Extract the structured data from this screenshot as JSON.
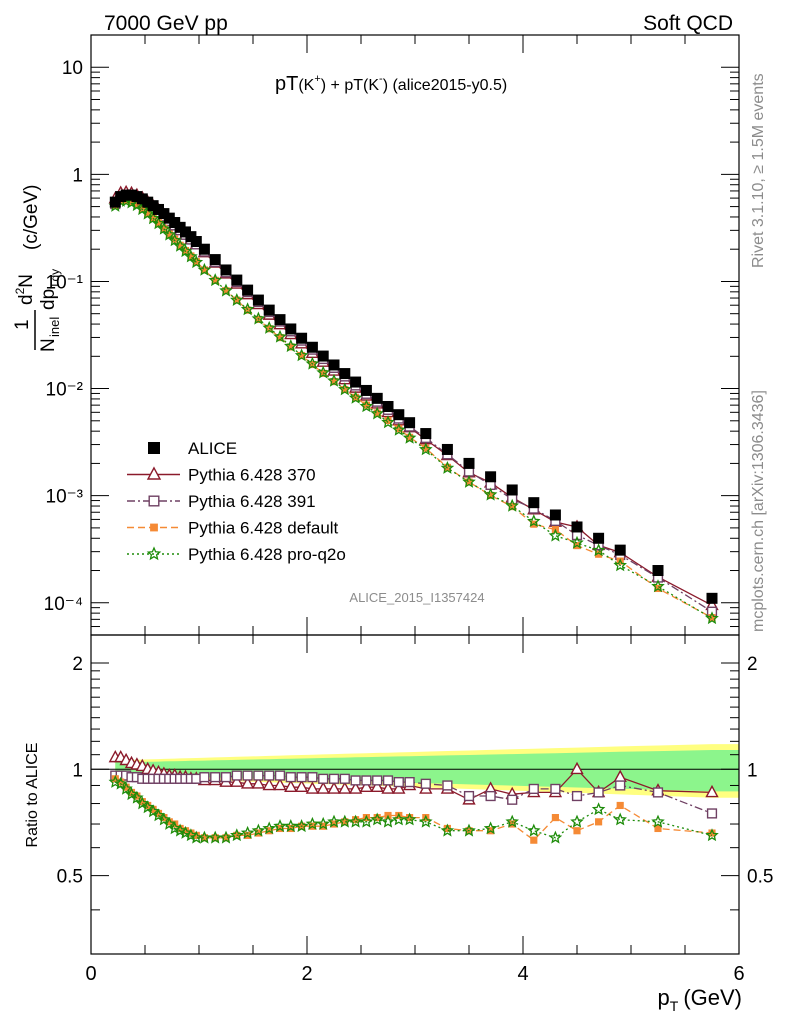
{
  "header": {
    "left": "7000 GeV pp",
    "right": "Soft QCD"
  },
  "side_text": {
    "rivet": "Rivet 3.1.10, ≥ 1.5M events",
    "mcplots": "mcplots.cern.ch [arXiv:1306.3436]"
  },
  "chart_data": {
    "type": "scatter",
    "title_main": "pT",
    "title_k_plus": "(K",
    "title_plus_sup": "+",
    "title_mid": ") + pT(K",
    "title_minus_sup": "-",
    "title_tail": ") (alice2015-y0.5)",
    "watermark": "ALICE_2015_I1357424",
    "ylabel_main": "(c/GeV)",
    "xlabel": "p",
    "xlabel_sub": "T",
    "xlabel_unit": "(GeV)",
    "ratio_ylabel": "Ratio to ALICE",
    "xlim": [
      0,
      6
    ],
    "ylim": [
      5e-05,
      20
    ],
    "yscale": "log",
    "ratio_ylim": [
      0.3,
      2.4
    ],
    "x_ticks": [
      "0",
      "2",
      "4",
      "6"
    ],
    "y_ticks": [
      "10",
      "1",
      "10⁻¹",
      "10⁻²",
      "10⁻³",
      "10⁻⁴"
    ],
    "ratio_ticks": [
      "0.5",
      "1",
      "2"
    ],
    "x": [
      0.225,
      0.275,
      0.325,
      0.375,
      0.425,
      0.475,
      0.525,
      0.575,
      0.625,
      0.675,
      0.725,
      0.775,
      0.825,
      0.875,
      0.925,
      0.975,
      1.05,
      1.15,
      1.25,
      1.35,
      1.45,
      1.55,
      1.65,
      1.75,
      1.85,
      1.95,
      2.05,
      2.15,
      2.25,
      2.35,
      2.45,
      2.55,
      2.65,
      2.75,
      2.85,
      2.95,
      3.1,
      3.3,
      3.5,
      3.7,
      3.9,
      4.1,
      4.3,
      4.5,
      4.7,
      4.9,
      5.25,
      5.75
    ],
    "series": [
      {
        "name": "ALICE",
        "values": [
          0.55,
          0.62,
          0.64,
          0.64,
          0.62,
          0.59,
          0.55,
          0.51,
          0.47,
          0.43,
          0.39,
          0.355,
          0.32,
          0.29,
          0.262,
          0.236,
          0.2,
          0.16,
          0.128,
          0.103,
          0.083,
          0.067,
          0.054,
          0.044,
          0.036,
          0.0295,
          0.0243,
          0.0201,
          0.0166,
          0.0138,
          0.0115,
          0.0096,
          0.0081,
          0.0068,
          0.0057,
          0.0048,
          0.0038,
          0.0027,
          0.002,
          0.0015,
          0.00113,
          0.00086,
          0.00066,
          0.00051,
          0.0004,
          0.00031,
          0.0002,
          0.00011
        ]
      },
      {
        "name": "Pythia 6.428 370",
        "ratio": [
          1.08,
          1.08,
          1.06,
          1.04,
          1.03,
          1.02,
          1.0,
          0.99,
          0.98,
          0.97,
          0.96,
          0.96,
          0.95,
          0.95,
          0.94,
          0.94,
          0.93,
          0.93,
          0.92,
          0.92,
          0.91,
          0.91,
          0.9,
          0.9,
          0.89,
          0.89,
          0.88,
          0.88,
          0.88,
          0.88,
          0.88,
          0.89,
          0.89,
          0.88,
          0.88,
          0.9,
          0.88,
          0.88,
          0.82,
          0.88,
          0.85,
          0.86,
          0.86,
          1.0,
          0.86,
          0.95,
          0.87,
          0.86
        ]
      },
      {
        "name": "Pythia 6.428 391",
        "ratio": [
          0.96,
          0.96,
          0.96,
          0.95,
          0.95,
          0.94,
          0.94,
          0.94,
          0.94,
          0.94,
          0.94,
          0.94,
          0.94,
          0.94,
          0.94,
          0.94,
          0.95,
          0.95,
          0.95,
          0.96,
          0.96,
          0.96,
          0.96,
          0.96,
          0.95,
          0.95,
          0.95,
          0.94,
          0.94,
          0.94,
          0.93,
          0.93,
          0.93,
          0.93,
          0.92,
          0.92,
          0.91,
          0.9,
          0.84,
          0.84,
          0.82,
          0.88,
          0.88,
          0.84,
          0.86,
          0.9,
          0.86,
          0.75
        ]
      },
      {
        "name": "Pythia 6.428 default",
        "ratio": [
          0.94,
          0.92,
          0.89,
          0.86,
          0.84,
          0.81,
          0.79,
          0.77,
          0.75,
          0.73,
          0.71,
          0.7,
          0.68,
          0.67,
          0.66,
          0.65,
          0.64,
          0.64,
          0.64,
          0.65,
          0.65,
          0.66,
          0.67,
          0.68,
          0.68,
          0.69,
          0.69,
          0.69,
          0.7,
          0.71,
          0.72,
          0.73,
          0.73,
          0.74,
          0.74,
          0.73,
          0.73,
          0.68,
          0.67,
          0.67,
          0.7,
          0.63,
          0.73,
          0.67,
          0.71,
          0.79,
          0.68,
          0.66
        ]
      },
      {
        "name": "Pythia 6.428 pro-q2o",
        "ratio": [
          0.92,
          0.91,
          0.88,
          0.85,
          0.83,
          0.8,
          0.78,
          0.76,
          0.74,
          0.72,
          0.7,
          0.68,
          0.67,
          0.66,
          0.65,
          0.64,
          0.64,
          0.64,
          0.64,
          0.65,
          0.66,
          0.67,
          0.68,
          0.69,
          0.69,
          0.69,
          0.7,
          0.7,
          0.71,
          0.71,
          0.71,
          0.71,
          0.72,
          0.71,
          0.72,
          0.72,
          0.71,
          0.67,
          0.67,
          0.68,
          0.71,
          0.67,
          0.64,
          0.71,
          0.77,
          0.72,
          0.71,
          0.65
        ]
      }
    ],
    "legend_placement": "lower-left",
    "colors": {
      "data": "#000000",
      "p370": "#8b1a2b",
      "p391": "#6f4063",
      "default": "#f58a35",
      "proq2o": "#1e8c0a",
      "band_outer": "#ffff80",
      "band_inner": "#8cf58c"
    }
  }
}
